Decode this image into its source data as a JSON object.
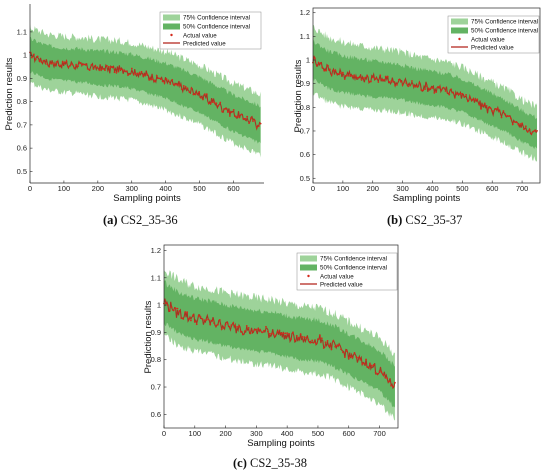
{
  "captions": [
    {
      "letter": "(a)",
      "text": "CS2_35-36"
    },
    {
      "letter": "(b)",
      "text": "CS2_35-37"
    },
    {
      "letter": "(c)",
      "text": "CS2_35-38"
    }
  ],
  "colors": {
    "ci75": "#9ed39a",
    "ci50": "#63b363",
    "actual": "#d42a1c",
    "predicted": "#b2231a",
    "axis": "#262626"
  },
  "chart_data": [
    {
      "type": "line",
      "caption": "(a) CS2_35-36",
      "xlabel": "Sampling points",
      "ylabel": "Prediction results",
      "xlim": [
        0,
        690
      ],
      "ylim": [
        0.45,
        1.22
      ],
      "xticks": [
        0,
        100,
        200,
        300,
        400,
        500,
        600
      ],
      "yticks": [
        0.5,
        0.6,
        0.7,
        0.8,
        0.9,
        1,
        1.1
      ],
      "legend": [
        "75% Confidence interval",
        "50% Confidence interval",
        "Actual value",
        "Predicted value"
      ],
      "legend_position": "top-right",
      "series_trend": {
        "x": [
          0,
          50,
          100,
          150,
          200,
          250,
          300,
          350,
          400,
          450,
          500,
          550,
          600,
          650,
          680
        ],
        "y": [
          1.0,
          0.97,
          0.96,
          0.955,
          0.945,
          0.94,
          0.93,
          0.91,
          0.89,
          0.86,
          0.83,
          0.79,
          0.75,
          0.72,
          0.7
        ]
      },
      "ci75_halfwidth": [
        0.12,
        0.13
      ],
      "ci50_halfwidth": [
        0.07,
        0.08
      ]
    },
    {
      "type": "line",
      "caption": "(b) CS2_35-37",
      "xlabel": "Sampling points",
      "ylabel": "Prediction results",
      "xlim": [
        0,
        760
      ],
      "ylim": [
        0.48,
        1.22
      ],
      "xticks": [
        0,
        100,
        200,
        300,
        400,
        500,
        600,
        700
      ],
      "yticks": [
        0.5,
        0.6,
        0.7,
        0.8,
        0.9,
        1,
        1.1,
        1.2
      ],
      "legend": [
        "75% Confidence interval",
        "50% Confidence interval",
        "Actual value",
        "Predicted value"
      ],
      "legend_position": "top-right",
      "series_trend": {
        "x": [
          0,
          50,
          100,
          150,
          200,
          250,
          300,
          350,
          400,
          450,
          500,
          550,
          600,
          650,
          700,
          750
        ],
        "y": [
          1.0,
          0.96,
          0.94,
          0.93,
          0.92,
          0.915,
          0.905,
          0.89,
          0.88,
          0.87,
          0.85,
          0.82,
          0.79,
          0.76,
          0.72,
          0.69
        ]
      },
      "ci75_halfwidth": [
        0.14,
        0.11
      ],
      "ci50_halfwidth": [
        0.08,
        0.065
      ]
    },
    {
      "type": "line",
      "caption": "(c) CS2_35-38",
      "xlabel": "Sampling points",
      "ylabel": "Prediction results",
      "xlim": [
        0,
        760
      ],
      "ylim": [
        0.55,
        1.22
      ],
      "xticks": [
        0,
        100,
        200,
        300,
        400,
        500,
        600,
        700
      ],
      "yticks": [
        0.6,
        0.7,
        0.8,
        0.9,
        1,
        1.1,
        1.2
      ],
      "legend": [
        "75% Confidence interval",
        "50% Confidence interval",
        "Actual value",
        "Predicted value"
      ],
      "legend_position": "top-right",
      "series_trend": {
        "x": [
          0,
          50,
          100,
          150,
          200,
          250,
          300,
          350,
          400,
          450,
          500,
          550,
          600,
          650,
          700,
          750
        ],
        "y": [
          1.01,
          0.97,
          0.95,
          0.94,
          0.925,
          0.915,
          0.905,
          0.9,
          0.885,
          0.875,
          0.87,
          0.85,
          0.82,
          0.79,
          0.76,
          0.7
        ]
      },
      "ci75_halfwidth": [
        0.12,
        0.12
      ],
      "ci50_halfwidth": [
        0.075,
        0.075
      ]
    }
  ]
}
